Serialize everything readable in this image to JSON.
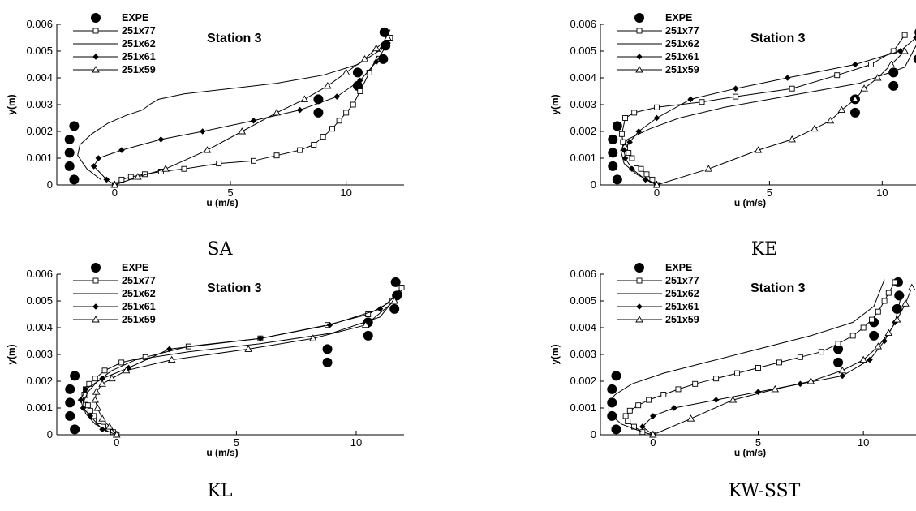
{
  "figure": {
    "panels": [
      {
        "caption": "SA"
      },
      {
        "caption": "KE"
      },
      {
        "caption": "KL"
      },
      {
        "caption": "KW-SST"
      }
    ]
  },
  "chart_data": [
    {
      "type": "line",
      "caption": "SA",
      "title": "Station 3",
      "xlabel": "u (m/s)",
      "ylabel": "y(m)",
      "xlim": [
        -2.5,
        12.5
      ],
      "ylim": [
        0,
        0.006
      ],
      "xticks": [
        0,
        5,
        10
      ],
      "yticks": [
        0,
        0.001,
        0.002,
        0.003,
        0.004,
        0.005,
        0.006
      ],
      "ytick_labels": [
        "0",
        "0.001",
        "0.002",
        "0.003",
        "0.004",
        "0.005",
        "0.006"
      ],
      "legend_position": "top-left",
      "series": [
        {
          "name": "EXPE",
          "marker": "filled-circle",
          "x": [
            -1.75,
            -1.95,
            -1.95,
            -1.95,
            -1.75,
            8.8,
            8.8,
            10.5,
            10.5,
            11.6,
            11.7,
            11.65
          ],
          "y": [
            0.0002,
            0.0007,
            0.0012,
            0.0017,
            0.0022,
            0.0027,
            0.0032,
            0.0037,
            0.0042,
            0.0047,
            0.0052,
            0.0057
          ]
        },
        {
          "name": "251x77",
          "marker": "open-square",
          "x": [
            0,
            0.3,
            0.7,
            1.3,
            2.0,
            3.0,
            4.5,
            6.0,
            7.0,
            8.0,
            8.6,
            9.0,
            9.4,
            9.7,
            10.0,
            10.3,
            10.6,
            11.0,
            11.4,
            11.9
          ],
          "y": [
            0,
            0.0002,
            0.0003,
            0.0004,
            0.0005,
            0.0006,
            0.0008,
            0.0009,
            0.0011,
            0.0013,
            0.0015,
            0.0018,
            0.0021,
            0.0024,
            0.0027,
            0.003,
            0.0035,
            0.0042,
            0.0049,
            0.0055
          ]
        },
        {
          "name": "251x62",
          "marker": "none",
          "x": [
            -0.6,
            -1.2,
            -1.6,
            -1.5,
            -1.0,
            -0.3,
            0.5,
            1.2,
            1.5,
            1.9,
            3.0,
            5.0,
            7.0,
            9.0,
            10.5,
            11.4,
            11.9
          ],
          "y": [
            0.0002,
            0.0006,
            0.0011,
            0.0015,
            0.0019,
            0.0023,
            0.0026,
            0.0028,
            0.003,
            0.0032,
            0.0034,
            0.0036,
            0.0038,
            0.0041,
            0.0045,
            0.005,
            0.0058
          ]
        },
        {
          "name": "251x61",
          "marker": "filled-diamond",
          "x": [
            0,
            -0.35,
            -0.9,
            -0.7,
            0.3,
            2.0,
            3.8,
            6.0,
            8.0,
            9.6,
            10.6,
            11.3,
            11.8
          ],
          "y": [
            0,
            0.0002,
            0.0007,
            0.001,
            0.0013,
            0.0017,
            0.002,
            0.0024,
            0.0028,
            0.0033,
            0.0039,
            0.0046,
            0.0053
          ]
        },
        {
          "name": "251x59",
          "marker": "open-triangle",
          "x": [
            0,
            1.0,
            2.2,
            4.0,
            5.5,
            7.0,
            8.2,
            9.2,
            10.0,
            10.8,
            11.3,
            11.8
          ],
          "y": [
            0,
            0.0003,
            0.0006,
            0.0013,
            0.002,
            0.0027,
            0.0032,
            0.0037,
            0.0042,
            0.0047,
            0.0051,
            0.0055
          ]
        }
      ]
    },
    {
      "type": "line",
      "caption": "KE",
      "title": "Station 3",
      "xlabel": "u (m/s)",
      "ylabel": "y(m)",
      "xlim": [
        -2.5,
        11.5
      ],
      "ylim": [
        0,
        0.006
      ],
      "xticks": [
        0,
        5,
        10
      ],
      "yticks": [
        0,
        0.001,
        0.002,
        0.003,
        0.004,
        0.005,
        0.006
      ],
      "ytick_labels": [
        "0",
        "0.001",
        "0.002",
        "0.003",
        "0.004",
        "0.005",
        "0.006"
      ],
      "legend_position": "top-left",
      "series": [
        {
          "name": "EXPE",
          "marker": "filled-circle",
          "x": [
            -1.75,
            -1.95,
            -1.95,
            -1.95,
            -1.75,
            8.8,
            8.8,
            10.5,
            10.5,
            11.6,
            11.7,
            11.65
          ],
          "y": [
            0.0002,
            0.0007,
            0.0012,
            0.0017,
            0.0022,
            0.0027,
            0.0032,
            0.0037,
            0.0042,
            0.0047,
            0.0052,
            0.0057
          ]
        },
        {
          "name": "251x77",
          "marker": "open-square",
          "x": [
            0,
            -0.2,
            -0.45,
            -0.7,
            -0.9,
            -1.1,
            -1.25,
            -1.4,
            -1.5,
            -1.55,
            -1.4,
            -1.0,
            0,
            2.0,
            3.5,
            6.0,
            8.0,
            9.5,
            10.5,
            11.0
          ],
          "y": [
            0,
            0.0002,
            0.0004,
            0.0006,
            0.0008,
            0.001,
            0.0012,
            0.0014,
            0.0016,
            0.0019,
            0.0025,
            0.0027,
            0.0029,
            0.0031,
            0.0033,
            0.0036,
            0.0041,
            0.0045,
            0.005,
            0.0056
          ]
        },
        {
          "name": "251x62",
          "marker": "none",
          "x": [
            -0.2,
            -0.9,
            -1.45,
            -1.6,
            -1.3,
            -0.3,
            1.0,
            3.0,
            5.0,
            7.0,
            9.0,
            11.0,
            11.5
          ],
          "y": [
            0.0001,
            0.0004,
            0.0008,
            0.0013,
            0.0017,
            0.0021,
            0.0025,
            0.0029,
            0.0032,
            0.0035,
            0.0038,
            0.0044,
            0.0052
          ]
        },
        {
          "name": "251x61",
          "marker": "filled-diamond",
          "x": [
            0,
            -0.5,
            -1.1,
            -1.4,
            -1.45,
            -1.2,
            -0.8,
            0,
            1.5,
            3.5,
            5.8,
            8.8,
            10.8,
            11.5
          ],
          "y": [
            0,
            0.0002,
            0.0006,
            0.001,
            0.0013,
            0.0016,
            0.002,
            0.0025,
            0.0032,
            0.0036,
            0.004,
            0.0045,
            0.005,
            0.0055
          ]
        },
        {
          "name": "251x59",
          "marker": "open-triangle",
          "x": [
            0,
            2.3,
            4.5,
            6.0,
            7.0,
            7.7,
            8.2,
            8.8,
            9.2,
            9.8,
            10.4,
            11.0
          ],
          "y": [
            0,
            0.0006,
            0.0013,
            0.0017,
            0.0021,
            0.0024,
            0.0028,
            0.0032,
            0.0036,
            0.004,
            0.0045,
            0.005
          ]
        }
      ]
    },
    {
      "type": "line",
      "caption": "KL",
      "title": "Station 3",
      "xlabel": "u (m/s)",
      "ylabel": "y(m)",
      "xlim": [
        -2.5,
        12.0
      ],
      "ylim": [
        0,
        0.006
      ],
      "xticks": [
        0,
        5,
        10
      ],
      "yticks": [
        0,
        0.001,
        0.002,
        0.003,
        0.004,
        0.005,
        0.006
      ],
      "ytick_labels": [
        "0",
        "0.001",
        "0.002",
        "0.003",
        "0.004",
        "0.005",
        "0.006"
      ],
      "legend_position": "top-left",
      "series": [
        {
          "name": "EXPE",
          "marker": "filled-circle",
          "x": [
            -1.75,
            -1.95,
            -1.95,
            -1.95,
            -1.75,
            8.8,
            8.8,
            10.5,
            10.5,
            11.6,
            11.7,
            11.65
          ],
          "y": [
            0.0002,
            0.0007,
            0.0012,
            0.0017,
            0.0022,
            0.0027,
            0.0032,
            0.0037,
            0.0042,
            0.0047,
            0.0052,
            0.0057
          ]
        },
        {
          "name": "251x77",
          "marker": "open-square",
          "x": [
            0,
            -0.15,
            -0.35,
            -0.55,
            -0.75,
            -0.95,
            -1.1,
            -1.2,
            -1.3,
            -1.35,
            -1.3,
            -1.15,
            -0.9,
            -0.5,
            0.2,
            1.2,
            3.0,
            6.0,
            8.8,
            10.5,
            11.5,
            11.9
          ],
          "y": [
            0,
            0.0001,
            0.0002,
            0.0003,
            0.0005,
            0.0007,
            0.0009,
            0.0011,
            0.0013,
            0.0015,
            0.0017,
            0.0019,
            0.0021,
            0.0024,
            0.0027,
            0.0029,
            0.0033,
            0.0036,
            0.0041,
            0.0045,
            0.005,
            0.0055
          ]
        },
        {
          "name": "251x62",
          "marker": "none",
          "x": [
            -0.3,
            -0.9,
            -1.3,
            -1.4,
            -1.2,
            -0.8,
            -0.2,
            0.8,
            3.0,
            6.0,
            9.0,
            11.0,
            11.9
          ],
          "y": [
            0.0001,
            0.0004,
            0.0008,
            0.0012,
            0.0016,
            0.002,
            0.0024,
            0.0028,
            0.0031,
            0.0034,
            0.0038,
            0.0044,
            0.0054
          ]
        },
        {
          "name": "251x61",
          "marker": "filled-diamond",
          "x": [
            0,
            -0.6,
            -1.1,
            -1.4,
            -1.5,
            -1.3,
            -0.6,
            0.5,
            2.2,
            6.0,
            8.9,
            11.0,
            11.8
          ],
          "y": [
            0,
            0.0002,
            0.0007,
            0.001,
            0.0013,
            0.0017,
            0.0021,
            0.0025,
            0.0032,
            0.0036,
            0.0041,
            0.0047,
            0.0053
          ]
        },
        {
          "name": "251x59",
          "marker": "open-triangle",
          "x": [
            0,
            -0.3,
            -0.6,
            -0.8,
            -0.9,
            -0.85,
            -0.6,
            -0.2,
            0.4,
            2.3,
            5.5,
            8.2,
            10.4,
            11.6
          ],
          "y": [
            0,
            0.0003,
            0.0006,
            0.001,
            0.0013,
            0.0016,
            0.0019,
            0.0021,
            0.0024,
            0.0028,
            0.0032,
            0.0036,
            0.0041,
            0.005
          ]
        }
      ]
    },
    {
      "type": "line",
      "caption": "KW-SST",
      "title": "Station 3",
      "xlabel": "u (m/s)",
      "ylabel": "y(m)",
      "xlim": [
        -2.5,
        12.5
      ],
      "ylim": [
        0,
        0.006
      ],
      "xticks": [
        0,
        5,
        10
      ],
      "yticks": [
        0,
        0.001,
        0.002,
        0.003,
        0.004,
        0.005,
        0.006
      ],
      "ytick_labels": [
        "0",
        "0.001",
        "0.002",
        "0.003",
        "0.004",
        "0.005",
        "0.006"
      ],
      "legend_position": "top-left",
      "series": [
        {
          "name": "EXPE",
          "marker": "filled-circle",
          "x": [
            -1.75,
            -1.95,
            -1.95,
            -1.95,
            -1.75,
            8.8,
            8.8,
            10.5,
            10.5,
            11.6,
            11.7,
            11.65
          ],
          "y": [
            0.0002,
            0.0007,
            0.0012,
            0.0017,
            0.0022,
            0.0027,
            0.0032,
            0.0037,
            0.0042,
            0.0047,
            0.0052,
            0.0057
          ]
        },
        {
          "name": "251x77",
          "marker": "open-square",
          "x": [
            0,
            -0.5,
            -0.9,
            -1.2,
            -1.3,
            -1.1,
            -0.7,
            -0.2,
            0.5,
            1.2,
            2.0,
            3.0,
            4.0,
            5.0,
            6.0,
            7.0,
            8.0,
            8.8,
            9.5,
            10.0,
            10.4,
            10.7,
            11.0,
            11.2,
            11.5
          ],
          "y": [
            0,
            0.0001,
            0.0003,
            0.0005,
            0.0007,
            0.0009,
            0.0011,
            0.0013,
            0.0015,
            0.0017,
            0.0019,
            0.0021,
            0.0023,
            0.0025,
            0.0027,
            0.0029,
            0.0031,
            0.0034,
            0.0037,
            0.004,
            0.0043,
            0.0046,
            0.005,
            0.0053,
            0.0057
          ]
        },
        {
          "name": "251x62",
          "marker": "none",
          "x": [
            -0.5,
            -1.5,
            -2.1,
            -2.1,
            -1.8,
            -1.0,
            0.5,
            2.5,
            5.0,
            7.5,
            9.5,
            10.5,
            11.0
          ],
          "y": [
            0.0001,
            0.0004,
            0.0008,
            0.0012,
            0.0015,
            0.0019,
            0.0023,
            0.0027,
            0.0032,
            0.0037,
            0.0042,
            0.0048,
            0.0058
          ]
        },
        {
          "name": "251x61",
          "marker": "filled-diamond",
          "x": [
            0,
            -0.5,
            0,
            1.0,
            3.0,
            5.0,
            7.0,
            9.0,
            10.3,
            11.0,
            11.5,
            11.8
          ],
          "y": [
            0,
            0.0003,
            0.0007,
            0.001,
            0.0013,
            0.0016,
            0.0019,
            0.0022,
            0.0028,
            0.0035,
            0.0042,
            0.0052
          ]
        },
        {
          "name": "251x59",
          "marker": "open-triangle",
          "x": [
            0,
            1.8,
            3.8,
            5.8,
            7.5,
            9.0,
            10.0,
            10.7,
            11.2,
            11.6,
            12.0,
            12.3
          ],
          "y": [
            0,
            0.0006,
            0.0013,
            0.0017,
            0.002,
            0.0024,
            0.0028,
            0.0033,
            0.0038,
            0.0043,
            0.0049,
            0.0055
          ]
        }
      ]
    }
  ]
}
